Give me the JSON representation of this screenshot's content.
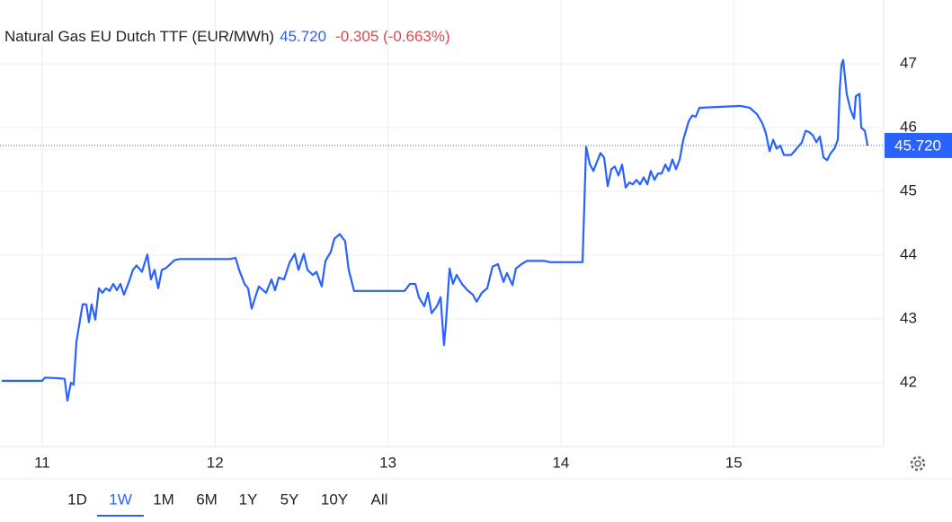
{
  "chart_data": {
    "type": "line",
    "title": "Natural Gas EU Dutch TTF (EUR/MWh)",
    "last_value": 45.72,
    "last_value_label": "45.720",
    "change_label": "-0.305 (-0.663%)",
    "color": "#2962ff",
    "xlim": [
      10.756,
      15.867
    ],
    "xticks": [
      11,
      12,
      13,
      14,
      15
    ],
    "ylim": [
      41,
      47.93
    ],
    "yticks": [
      42,
      43,
      44,
      45,
      46,
      47
    ],
    "grid": true,
    "range_buttons": [
      "1D",
      "1W",
      "1M",
      "6M",
      "1Y",
      "5Y",
      "10Y",
      "All"
    ],
    "selected_range_index": 1,
    "x": [
      10.766,
      11.0,
      11.016,
      11.094,
      11.13,
      11.146,
      11.166,
      11.182,
      11.198,
      11.234,
      11.255,
      11.27,
      11.286,
      11.307,
      11.328,
      11.348,
      11.369,
      11.39,
      11.411,
      11.432,
      11.452,
      11.473,
      11.504,
      11.525,
      11.546,
      11.577,
      11.608,
      11.629,
      11.65,
      11.671,
      11.692,
      11.712,
      11.733,
      11.764,
      11.796,
      12.087,
      12.118,
      12.139,
      12.17,
      12.191,
      12.212,
      12.232,
      12.253,
      12.295,
      12.326,
      12.347,
      12.368,
      12.399,
      12.43,
      12.461,
      12.482,
      12.513,
      12.534,
      12.565,
      12.586,
      12.617,
      12.638,
      12.669,
      12.69,
      12.721,
      12.752,
      12.773,
      12.804,
      13.096,
      13.127,
      13.158,
      13.179,
      13.21,
      13.231,
      13.252,
      13.283,
      13.304,
      13.324,
      13.335,
      13.356,
      13.376,
      13.397,
      13.428,
      13.46,
      13.491,
      13.512,
      13.543,
      13.574,
      13.605,
      13.636,
      13.668,
      13.688,
      13.72,
      13.74,
      13.772,
      13.803,
      13.907,
      13.938,
      14.125,
      14.146,
      14.167,
      14.188,
      14.208,
      14.229,
      14.25,
      14.271,
      14.292,
      14.312,
      14.333,
      14.354,
      14.375,
      14.396,
      14.416,
      14.437,
      14.458,
      14.479,
      14.5,
      14.52,
      14.541,
      14.562,
      14.583,
      14.604,
      14.624,
      14.645,
      14.666,
      14.687,
      14.708,
      14.739,
      14.76,
      14.78,
      14.801,
      15.041,
      15.093,
      15.134,
      15.165,
      15.186,
      15.207,
      15.228,
      15.248,
      15.269,
      15.29,
      15.332,
      15.363,
      15.394,
      15.415,
      15.436,
      15.457,
      15.478,
      15.498,
      15.519,
      15.54,
      15.561,
      15.582,
      15.602,
      15.613,
      15.623,
      15.633,
      15.654,
      15.675,
      15.696,
      15.706,
      15.727,
      15.737,
      15.758,
      15.774
    ],
    "values": [
      42.03,
      42.03,
      42.08,
      42.07,
      42.06,
      41.72,
      42.0,
      41.97,
      42.64,
      43.23,
      43.23,
      42.95,
      43.23,
      42.99,
      43.48,
      43.41,
      43.48,
      43.44,
      43.55,
      43.45,
      43.55,
      43.38,
      43.6,
      43.77,
      43.84,
      43.74,
      44.01,
      43.62,
      43.77,
      43.48,
      43.77,
      43.79,
      43.84,
      43.92,
      43.94,
      43.94,
      43.96,
      43.77,
      43.55,
      43.48,
      43.16,
      43.34,
      43.51,
      43.41,
      43.62,
      43.45,
      43.65,
      43.62,
      43.88,
      44.02,
      43.77,
      44.02,
      43.77,
      43.69,
      43.74,
      43.51,
      43.91,
      44.05,
      44.26,
      44.33,
      44.22,
      43.77,
      43.44,
      43.44,
      43.55,
      43.55,
      43.34,
      43.2,
      43.41,
      43.09,
      43.2,
      43.34,
      42.59,
      42.92,
      43.79,
      43.55,
      43.69,
      43.55,
      43.45,
      43.38,
      43.27,
      43.41,
      43.48,
      43.82,
      43.86,
      43.58,
      43.72,
      43.53,
      43.79,
      43.86,
      43.91,
      43.91,
      43.89,
      43.89,
      45.7,
      45.43,
      45.32,
      45.46,
      45.6,
      45.53,
      45.08,
      45.35,
      45.39,
      45.25,
      45.42,
      45.06,
      45.14,
      45.11,
      45.18,
      45.11,
      45.22,
      45.11,
      45.32,
      45.18,
      45.28,
      45.28,
      45.42,
      45.32,
      45.5,
      45.35,
      45.5,
      45.81,
      46.1,
      46.19,
      46.17,
      46.31,
      46.34,
      46.31,
      46.21,
      46.07,
      45.91,
      45.63,
      45.81,
      45.67,
      45.72,
      45.57,
      45.57,
      45.67,
      45.77,
      45.95,
      45.93,
      45.88,
      45.77,
      45.86,
      45.53,
      45.49,
      45.6,
      45.67,
      45.81,
      46.59,
      46.99,
      47.06,
      46.52,
      46.28,
      46.14,
      46.49,
      46.53,
      46.0,
      45.95,
      45.72
    ]
  }
}
